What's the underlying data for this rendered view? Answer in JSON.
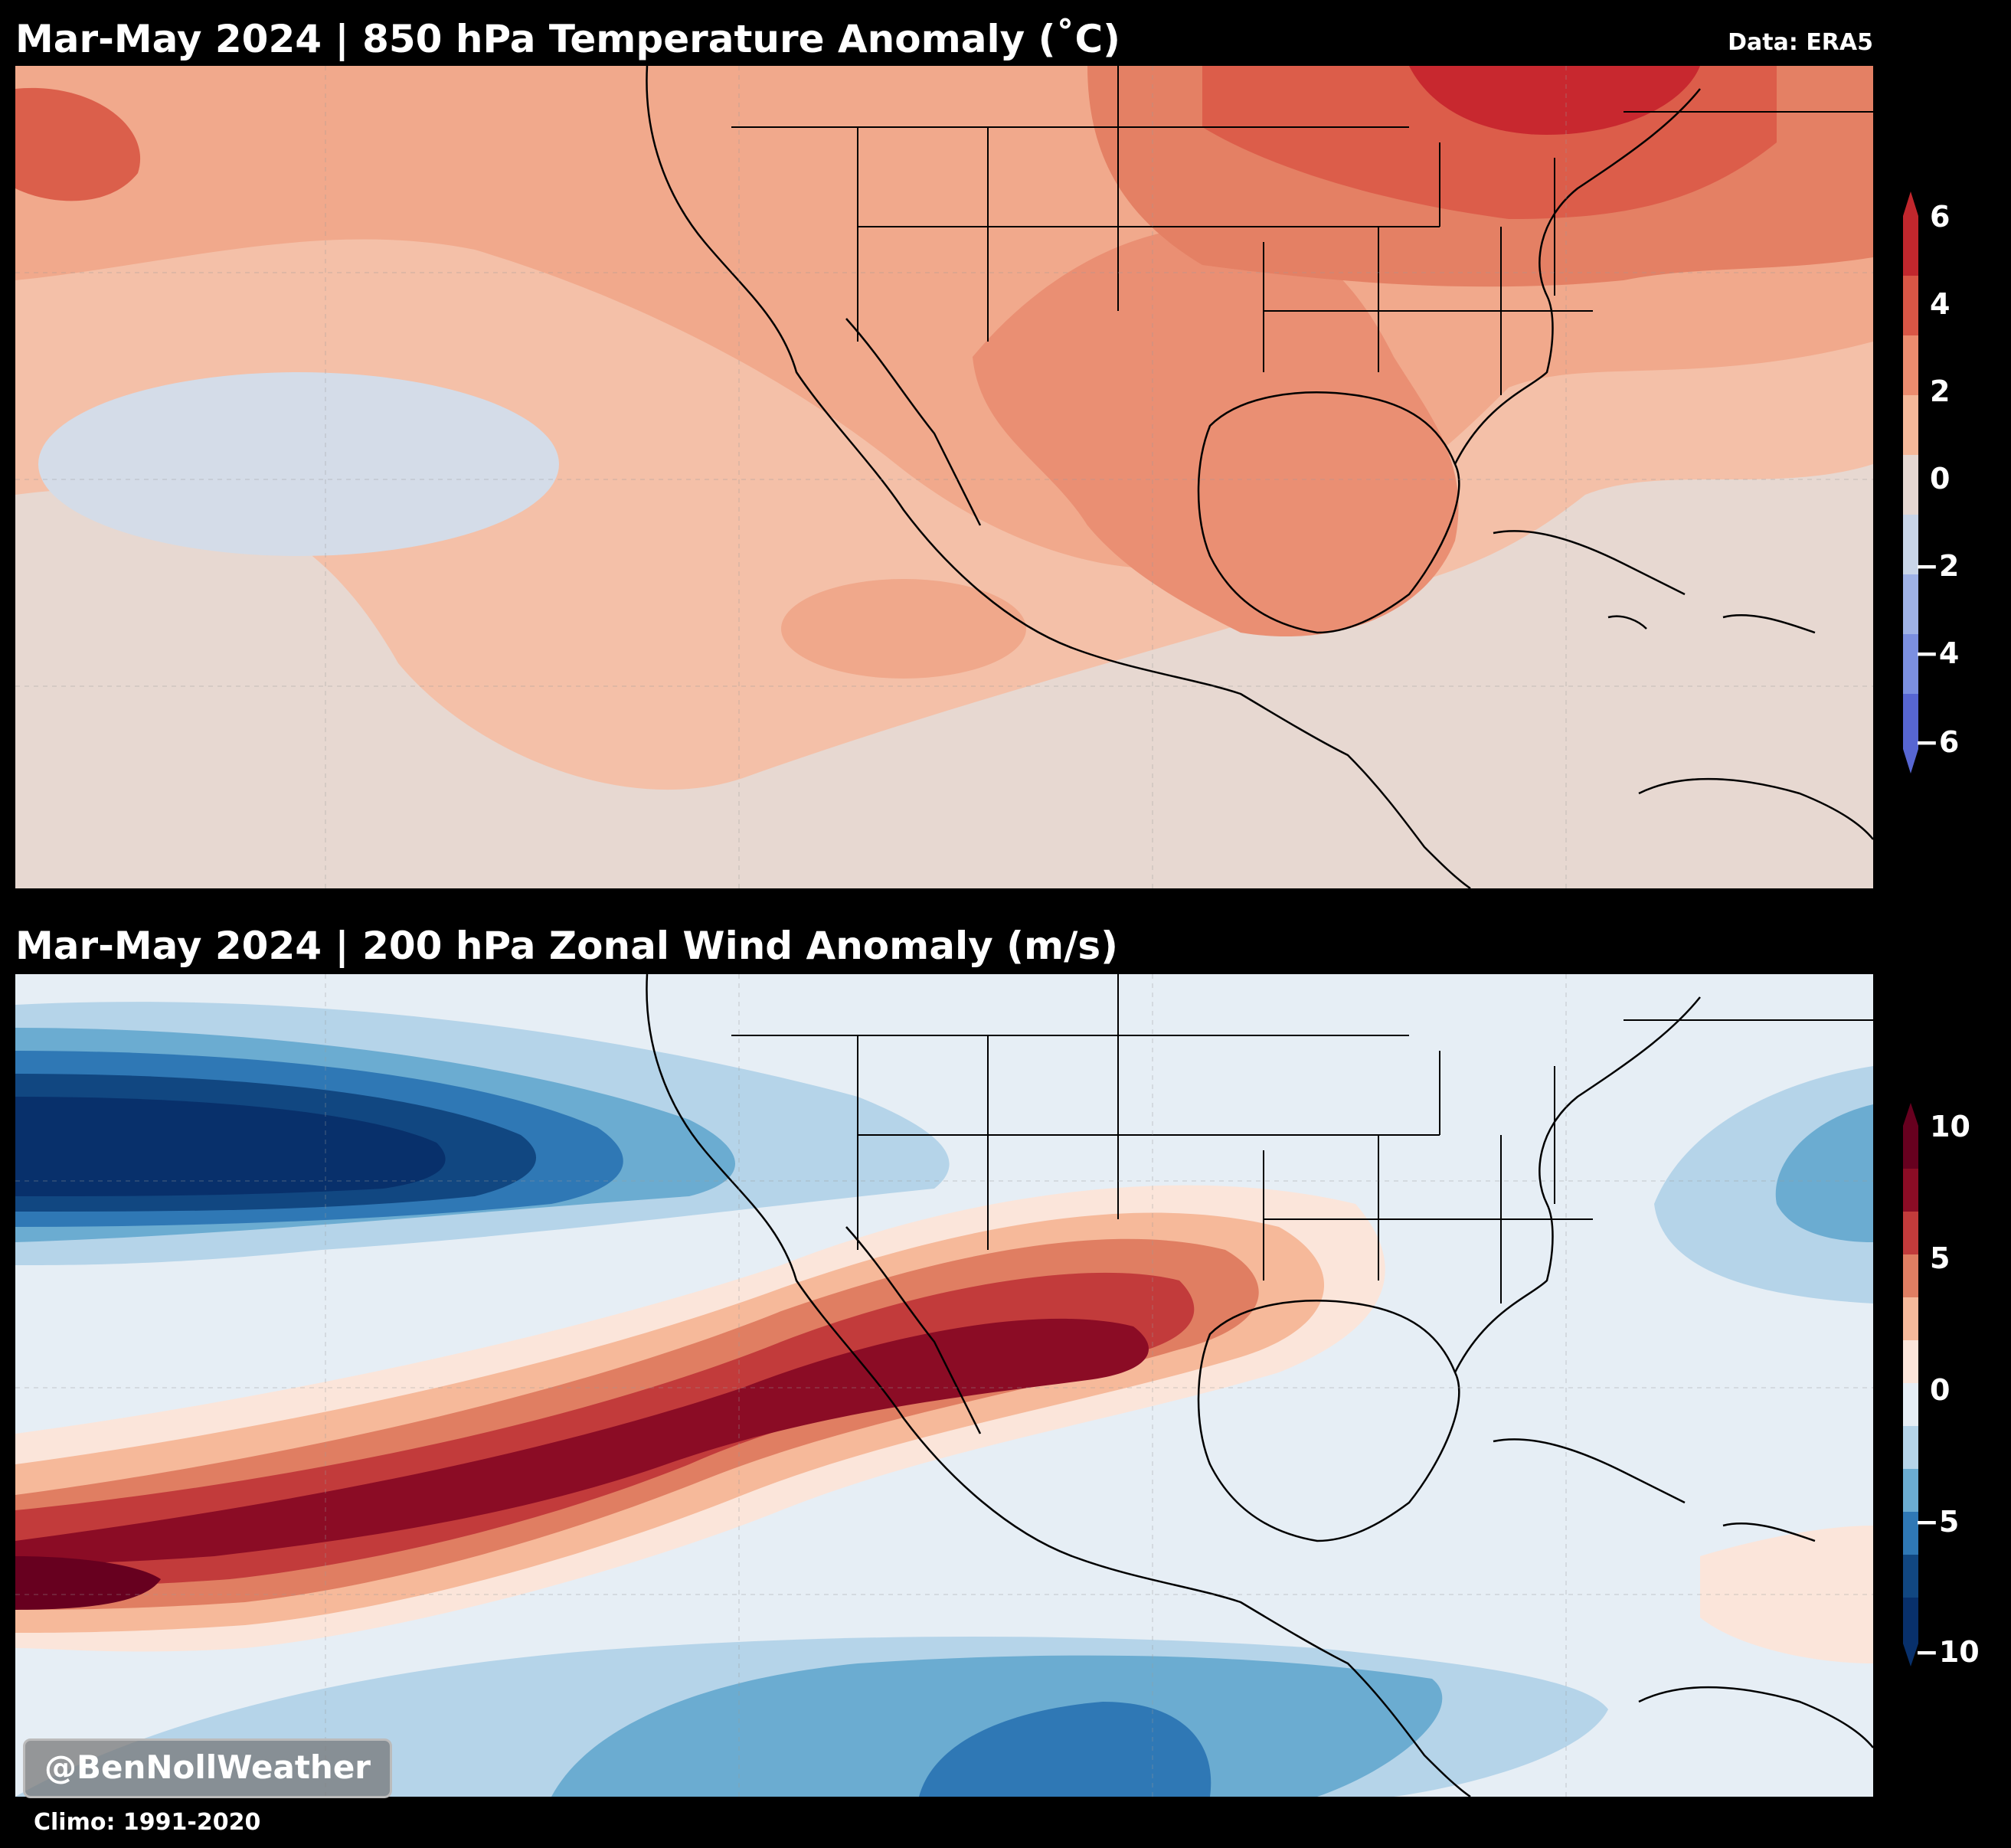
{
  "top_panel": {
    "title": "Mar-May 2024 | 850 hPa Temperature Anomaly (˚C)",
    "data_source": "Data: ERA5",
    "colorbar": {
      "ticks": [
        "6",
        "4",
        "2",
        "0",
        "−2",
        "−4",
        "−6"
      ],
      "range": [
        -6,
        6
      ],
      "colors": [
        "#c1272d",
        "#d95645",
        "#ec8c6e",
        "#f5b899",
        "#e6d8d2",
        "#c9d5e8",
        "#9fb2e6",
        "#7b8fe0",
        "#5766d2"
      ]
    }
  },
  "bottom_panel": {
    "title": "Mar-May 2024 | 200 hPa Zonal Wind Anomaly (m/s)",
    "colorbar": {
      "ticks": [
        "10",
        "5",
        "0",
        "−5",
        "−10"
      ],
      "range": [
        -10,
        10
      ],
      "colors": [
        "#67001f",
        "#8b0c25",
        "#c23b3b",
        "#e07e62",
        "#f6b99a",
        "#fbe5da",
        "#e6eef5",
        "#b5d4e9",
        "#6bacd1",
        "#2f78b5",
        "#114781",
        "#08306b"
      ]
    }
  },
  "footer": {
    "watermark": "@BenNollWeather",
    "climo": "Climo: 1991-2020"
  }
}
